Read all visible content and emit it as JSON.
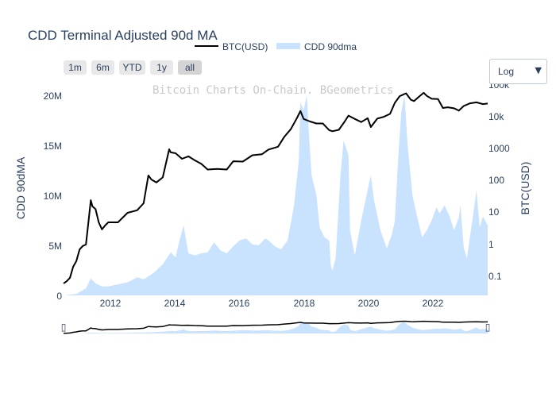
{
  "chart_data": {
    "type": "area",
    "title": "CDD Terminal Adjusted 90d MA",
    "watermark": "Bitcoin Charts On-Chain.  BGeometrics",
    "y_left_label": "CDD 90dMA",
    "y_right_label": "BTC(USD)",
    "y_left_ticks": [
      "0",
      "5M",
      "10M",
      "15M",
      "20M"
    ],
    "y_right_ticks": [
      "0.1",
      "1",
      "10",
      "100",
      "1000",
      "10k",
      "100k"
    ],
    "x_ticks": [
      "2012",
      "2014",
      "2016",
      "2018",
      "2020",
      "2022"
    ],
    "x_range": [
      2010.6,
      2023.85
    ],
    "y_left_range": [
      0,
      20000000
    ],
    "y_right_scale": "log",
    "legend": [
      {
        "name": "BTC(USD)",
        "color": "#000000",
        "kind": "line"
      },
      {
        "name": "CDD 90dma",
        "color": "#c9e2fd",
        "kind": "area"
      }
    ],
    "series": [
      {
        "name": "CDD 90dma",
        "axis": "left",
        "color": "#c9e2fd",
        "points": [
          [
            2010.6,
            0
          ],
          [
            2011.0,
            150000
          ],
          [
            2011.3,
            700000
          ],
          [
            2011.45,
            1700000
          ],
          [
            2011.6,
            1200000
          ],
          [
            2011.8,
            900000
          ],
          [
            2012.0,
            900000
          ],
          [
            2012.3,
            1100000
          ],
          [
            2012.6,
            1300000
          ],
          [
            2012.9,
            1800000
          ],
          [
            2013.1,
            1600000
          ],
          [
            2013.4,
            2200000
          ],
          [
            2013.7,
            3100000
          ],
          [
            2013.95,
            4300000
          ],
          [
            2014.1,
            3800000
          ],
          [
            2014.2,
            5200000
          ],
          [
            2014.35,
            7000000
          ],
          [
            2014.5,
            4200000
          ],
          [
            2014.7,
            4000000
          ],
          [
            2014.9,
            4200000
          ],
          [
            2015.1,
            4300000
          ],
          [
            2015.3,
            5300000
          ],
          [
            2015.5,
            4500000
          ],
          [
            2015.7,
            4200000
          ],
          [
            2015.9,
            4900000
          ],
          [
            2016.1,
            5500000
          ],
          [
            2016.3,
            5700000
          ],
          [
            2016.5,
            5100000
          ],
          [
            2016.7,
            5000000
          ],
          [
            2016.9,
            5700000
          ],
          [
            2017.0,
            5500000
          ],
          [
            2017.2,
            4900000
          ],
          [
            2017.4,
            4600000
          ],
          [
            2017.6,
            5500000
          ],
          [
            2017.8,
            9000000
          ],
          [
            2017.95,
            13500000
          ],
          [
            2018.0,
            19300000
          ],
          [
            2018.1,
            18500000
          ],
          [
            2018.2,
            20000000
          ],
          [
            2018.25,
            17000000
          ],
          [
            2018.35,
            12000000
          ],
          [
            2018.5,
            10000000
          ],
          [
            2018.6,
            6800000
          ],
          [
            2018.75,
            5800000
          ],
          [
            2018.9,
            5500000
          ],
          [
            2018.95,
            3000000
          ],
          [
            2019.0,
            2500000
          ],
          [
            2019.1,
            3700000
          ],
          [
            2019.25,
            12000000
          ],
          [
            2019.35,
            15500000
          ],
          [
            2019.5,
            14000000
          ],
          [
            2019.55,
            6500000
          ],
          [
            2019.7,
            4000000
          ],
          [
            2019.9,
            7500000
          ],
          [
            2020.05,
            9800000
          ],
          [
            2020.2,
            12000000
          ],
          [
            2020.3,
            9500000
          ],
          [
            2020.5,
            6500000
          ],
          [
            2020.7,
            4700000
          ],
          [
            2020.85,
            6000000
          ],
          [
            2020.95,
            7400000
          ],
          [
            2021.05,
            13500000
          ],
          [
            2021.15,
            18300000
          ],
          [
            2021.25,
            20000000
          ],
          [
            2021.35,
            15000000
          ],
          [
            2021.5,
            10000000
          ],
          [
            2021.65,
            7800000
          ],
          [
            2021.8,
            5800000
          ],
          [
            2021.95,
            6500000
          ],
          [
            2022.1,
            7500000
          ],
          [
            2022.25,
            8800000
          ],
          [
            2022.35,
            8200000
          ],
          [
            2022.5,
            9000000
          ],
          [
            2022.65,
            8000000
          ],
          [
            2022.8,
            6500000
          ],
          [
            2022.95,
            7800000
          ],
          [
            2023.0,
            9000000
          ],
          [
            2023.1,
            4800000
          ],
          [
            2023.2,
            3700000
          ],
          [
            2023.35,
            7000000
          ],
          [
            2023.5,
            10500000
          ],
          [
            2023.6,
            6800000
          ],
          [
            2023.7,
            7900000
          ],
          [
            2023.85,
            7000000
          ]
        ]
      },
      {
        "name": "BTC(USD)",
        "axis": "right",
        "color": "#000000",
        "points": [
          [
            2010.6,
            0.06
          ],
          [
            2010.7,
            0.07
          ],
          [
            2010.8,
            0.09
          ],
          [
            2010.9,
            0.2
          ],
          [
            2011.0,
            0.3
          ],
          [
            2011.1,
            0.7
          ],
          [
            2011.2,
            0.9
          ],
          [
            2011.3,
            1
          ],
          [
            2011.4,
            8
          ],
          [
            2011.45,
            25
          ],
          [
            2011.5,
            16
          ],
          [
            2011.6,
            13
          ],
          [
            2011.7,
            5
          ],
          [
            2011.8,
            3
          ],
          [
            2011.9,
            4
          ],
          [
            2012.0,
            5
          ],
          [
            2012.3,
            5
          ],
          [
            2012.6,
            10
          ],
          [
            2012.9,
            12
          ],
          [
            2013.1,
            20
          ],
          [
            2013.25,
            150
          ],
          [
            2013.35,
            110
          ],
          [
            2013.5,
            90
          ],
          [
            2013.7,
            130
          ],
          [
            2013.9,
            1000
          ],
          [
            2013.95,
            800
          ],
          [
            2014.1,
            750
          ],
          [
            2014.3,
            500
          ],
          [
            2014.5,
            600
          ],
          [
            2014.7,
            450
          ],
          [
            2014.9,
            350
          ],
          [
            2015.1,
            230
          ],
          [
            2015.4,
            240
          ],
          [
            2015.7,
            230
          ],
          [
            2015.9,
            420
          ],
          [
            2016.2,
            410
          ],
          [
            2016.5,
            650
          ],
          [
            2016.8,
            700
          ],
          [
            2017.0,
            980
          ],
          [
            2017.3,
            1200
          ],
          [
            2017.5,
            2500
          ],
          [
            2017.7,
            4300
          ],
          [
            2017.9,
            10000
          ],
          [
            2018.0,
            16000
          ],
          [
            2018.1,
            9000
          ],
          [
            2018.3,
            7500
          ],
          [
            2018.5,
            6500
          ],
          [
            2018.7,
            6500
          ],
          [
            2018.9,
            4000
          ],
          [
            2019.0,
            3700
          ],
          [
            2019.2,
            4100
          ],
          [
            2019.4,
            8000
          ],
          [
            2019.5,
            11500
          ],
          [
            2019.7,
            9000
          ],
          [
            2019.9,
            7200
          ],
          [
            2020.1,
            9500
          ],
          [
            2020.2,
            5000
          ],
          [
            2020.4,
            9200
          ],
          [
            2020.6,
            10500
          ],
          [
            2020.8,
            13000
          ],
          [
            2020.95,
            29000
          ],
          [
            2021.1,
            47000
          ],
          [
            2021.3,
            58000
          ],
          [
            2021.45,
            36000
          ],
          [
            2021.55,
            33000
          ],
          [
            2021.7,
            45000
          ],
          [
            2021.85,
            60000
          ],
          [
            2021.95,
            48000
          ],
          [
            2022.1,
            39000
          ],
          [
            2022.3,
            38000
          ],
          [
            2022.45,
            20000
          ],
          [
            2022.6,
            21000
          ],
          [
            2022.8,
            19500
          ],
          [
            2022.95,
            16500
          ],
          [
            2023.1,
            23000
          ],
          [
            2023.3,
            28000
          ],
          [
            2023.5,
            30000
          ],
          [
            2023.7,
            26500
          ],
          [
            2023.85,
            27500
          ]
        ]
      }
    ]
  },
  "range_buttons": [
    "1m",
    "6m",
    "YTD",
    "1y",
    "all"
  ],
  "active_range": "all",
  "scale_dropdown": {
    "value": "Log",
    "arrow": "▼"
  },
  "range_slider": {
    "left_handle": "▯",
    "right_handle": "▯"
  }
}
